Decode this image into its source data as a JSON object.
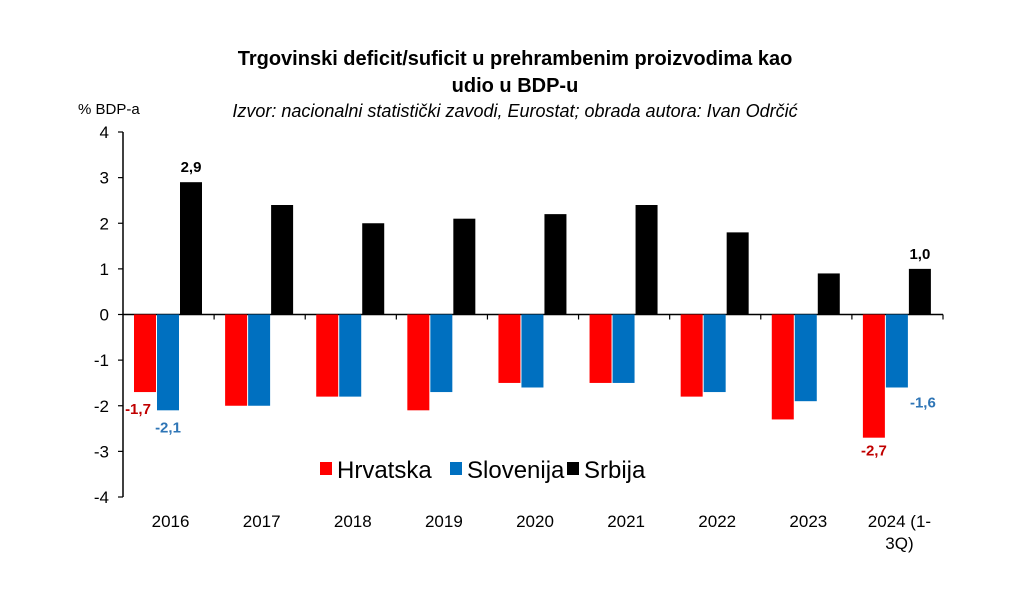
{
  "chart_data": {
    "type": "bar",
    "title_lines": [
      "Trgovinski deficit/suficit u prehrambenim proizvodima kao",
      "udio u BDP-u"
    ],
    "subtitle": "Izvor: nacionalni statistički zavodi, Eurostat; obrada autora: Ivan Odrčić",
    "ylabel": "% BDP-a",
    "ylim": [
      -4,
      4
    ],
    "yticks": [
      4,
      3,
      2,
      1,
      0,
      -1,
      -2,
      -3,
      -4
    ],
    "categories": [
      "2016",
      "2017",
      "2018",
      "2019",
      "2020",
      "2021",
      "2022",
      "2023",
      "2024 (1-3Q)"
    ],
    "category_label_lines": [
      [
        "2016"
      ],
      [
        "2017"
      ],
      [
        "2018"
      ],
      [
        "2019"
      ],
      [
        "2020"
      ],
      [
        "2021"
      ],
      [
        "2022"
      ],
      [
        "2023"
      ],
      [
        "2024 (1-",
        "3Q)"
      ]
    ],
    "series": [
      {
        "name": "Hrvatska",
        "color": "#ff0000",
        "label_color": "#c00000",
        "values": [
          -1.7,
          -2.0,
          -1.8,
          -2.1,
          -1.5,
          -1.5,
          -1.8,
          -2.3,
          -2.7
        ]
      },
      {
        "name": "Slovenija",
        "color": "#0070c0",
        "label_color": "#2e75b6",
        "values": [
          -2.1,
          -2.0,
          -1.8,
          -1.7,
          -1.6,
          -1.5,
          -1.7,
          -1.9,
          -1.6
        ]
      },
      {
        "name": "Srbija",
        "color": "#000000",
        "label_color": "#000000",
        "values": [
          2.9,
          2.4,
          2.0,
          2.1,
          2.2,
          2.4,
          1.8,
          0.9,
          1.0
        ]
      }
    ],
    "data_labels": [
      {
        "series": 0,
        "category": 0,
        "text": "-1,7"
      },
      {
        "series": 1,
        "category": 0,
        "text": "-2,1"
      },
      {
        "series": 2,
        "category": 0,
        "text": "2,9"
      },
      {
        "series": 0,
        "category": 8,
        "text": "-2,7"
      },
      {
        "series": 1,
        "category": 8,
        "text": "-1,6"
      },
      {
        "series": 2,
        "category": 8,
        "text": "1,0"
      }
    ],
    "legend": {
      "placement": "bottom-inside",
      "entries": [
        "Hrvatska",
        "Slovenija",
        "Srbija"
      ]
    },
    "grid": false
  }
}
